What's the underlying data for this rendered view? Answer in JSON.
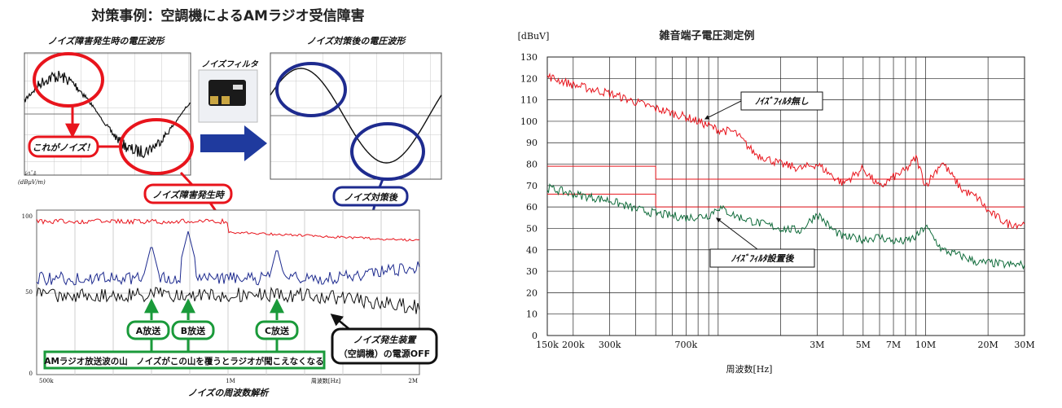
{
  "left_panel": {
    "title": "対策事例：空調機によるAMラジオ受信障害",
    "scope_before_title": "ノイズ障害発生時の電圧波形",
    "scope_after_title": "ノイズ対策後の電圧波形",
    "filter_label": "ノイズフィルタ",
    "callout_noise": "これがノイズ！",
    "callout_noise_occurring": "ノイズ障害発生時",
    "callout_noise_fixed": "ノイズ対策後",
    "level_label_1": "ﾚﾍﾞﾙ",
    "level_label_2": "(dBμV/m)",
    "spectrum_title": "ノイズの周波数解析",
    "spectrum_xlabel": "周波数[Hz]",
    "y_ticks": [
      "100",
      "50",
      "0"
    ],
    "x_ticks": [
      "500k",
      "1M",
      "2M"
    ],
    "station_a": "A放送",
    "station_b": "B放送",
    "station_c": "C放送",
    "am_box": "AMラジオ放送波の山　ノイズがこの山を覆うとラジオが聞こえなくなる",
    "off_note_1": "ノイズ発生装置",
    "off_note_2": "（空調機）の電源OFF",
    "colors": {
      "red": "#e8141c",
      "navy": "#1e2b8f",
      "green": "#1a9a3a",
      "black": "#111111"
    }
  },
  "chart_data": {
    "type": "line",
    "title": "雑音端子電圧測定例",
    "ylabel": "[dBuV]",
    "xlabel": "周波数[Hz]",
    "x_scale": "log",
    "xlim": [
      150000,
      30000000
    ],
    "ylim": [
      0,
      130
    ],
    "y_ticks": [
      0,
      10,
      20,
      30,
      40,
      50,
      60,
      70,
      80,
      90,
      100,
      110,
      120,
      130
    ],
    "x_tick_labels": [
      "150k",
      "200k",
      "300k",
      "700k",
      "3M",
      "5M",
      "7M",
      "10M",
      "20M",
      "30M"
    ],
    "x_tick_values": [
      150000,
      200000,
      300000,
      700000,
      3000000,
      5000000,
      7000000,
      10000000,
      20000000,
      30000000
    ],
    "grid": true,
    "series": [
      {
        "name": "ﾉｲｽﾞﾌｨﾙﾀ無し",
        "color": "#e8141c",
        "x": [
          150000,
          200000,
          300000,
          400000,
          500000,
          700000,
          900000,
          1000000,
          1200000,
          1500000,
          2000000,
          2500000,
          3000000,
          3500000,
          4000000,
          5000000,
          6000000,
          7000000,
          8000000,
          9000000,
          10000000,
          12000000,
          15000000,
          18000000,
          20000000,
          25000000,
          30000000
        ],
        "y": [
          121,
          117,
          113,
          109,
          106,
          102,
          98,
          96,
          95,
          85,
          80,
          78,
          80,
          75,
          71,
          78,
          69,
          74,
          77,
          83,
          70,
          81,
          68,
          64,
          58,
          52,
          52
        ]
      },
      {
        "name": "ﾉｲｽﾞﾌｨﾙﾀ設置後",
        "color": "#0f6b3a",
        "x": [
          150000,
          200000,
          300000,
          400000,
          500000,
          700000,
          900000,
          1000000,
          1200000,
          1500000,
          2000000,
          2500000,
          3000000,
          3500000,
          4000000,
          5000000,
          6000000,
          7000000,
          8000000,
          9000000,
          10000000,
          12000000,
          15000000,
          18000000,
          20000000,
          25000000,
          30000000
        ],
        "y": [
          69,
          66,
          63,
          59,
          57,
          55,
          56,
          60,
          56,
          53,
          50,
          49,
          57,
          50,
          46,
          45,
          46,
          44,
          44,
          46,
          51,
          40,
          37,
          34,
          34,
          33,
          33
        ]
      }
    ],
    "limit_lines": [
      {
        "color": "#e8141c",
        "segments": [
          [
            150000,
            500000,
            79
          ],
          [
            500000,
            30000000,
            73
          ]
        ]
      },
      {
        "color": "#e8141c",
        "segments": [
          [
            150000,
            500000,
            66
          ],
          [
            500000,
            30000000,
            60
          ]
        ]
      }
    ],
    "annotations": [
      "ﾉｲｽﾞﾌｨﾙﾀ無し",
      "ﾉｲｽﾞﾌｨﾙﾀ設置後"
    ]
  }
}
